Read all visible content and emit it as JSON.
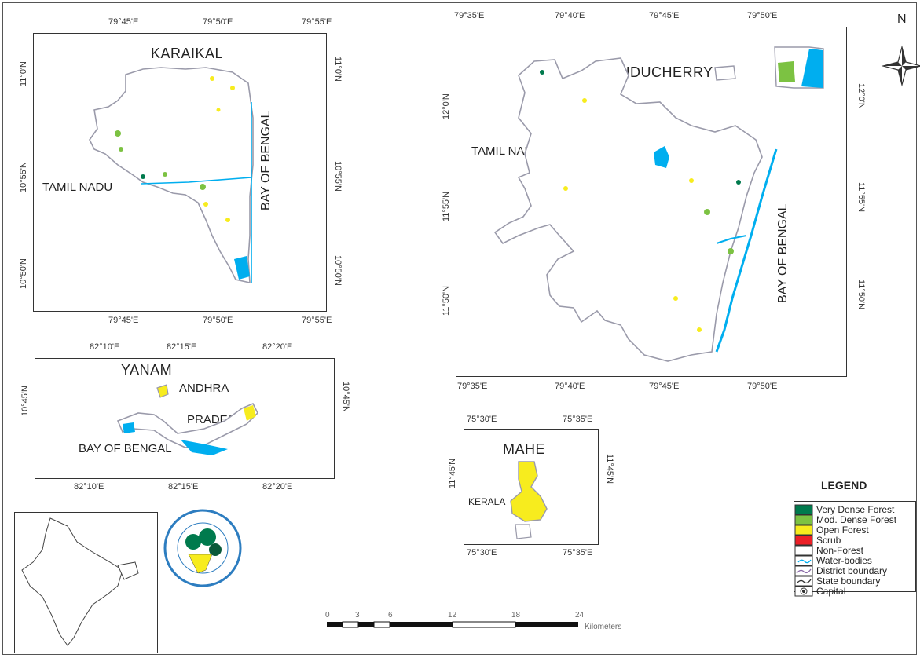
{
  "karaikal": {
    "title": "KARAIKAL",
    "top_ticks": [
      "79°45'E",
      "79°50'E",
      "79°55'E"
    ],
    "bottom_ticks": [
      "79°45'E",
      "79°50'E",
      "79°55'E"
    ],
    "left_ticks": [
      "11°0'N",
      "10°55'N",
      "10°50'N"
    ],
    "right_ticks": [
      "11°0'N",
      "10°55'N",
      "10°50'N"
    ],
    "land_label": "TAMIL NADU",
    "sea_label": "BAY OF BENGAL"
  },
  "puducherry": {
    "title": "PUDUCHERRY",
    "top_ticks": [
      "79°35'E",
      "79°40'E",
      "79°45'E",
      "79°50'E"
    ],
    "bottom_ticks": [
      "79°35'E",
      "79°40'E",
      "79°45'E",
      "79°50'E"
    ],
    "left_ticks": [
      "12°0'N",
      "11°55'N",
      "11°50'N"
    ],
    "right_ticks": [
      "12°0'N",
      "11°55'N",
      "11°50'N"
    ],
    "land_label": "TAMIL NADU",
    "sea_label": "BAY OF BENGAL"
  },
  "yanam": {
    "title": "YANAM",
    "top_ticks": [
      "82°10'E",
      "82°15'E",
      "82°20'E"
    ],
    "bottom_ticks": [
      "82°10'E",
      "82°15'E",
      "82°20'E"
    ],
    "left_ticks": [
      "10°45'N"
    ],
    "right_ticks": [
      "10°45'N"
    ],
    "land_label_line1": "ANDHRA",
    "land_label_line2": "PRADESH",
    "sea_label": "BAY OF BENGAL"
  },
  "mahe": {
    "title": "MAHE",
    "top_ticks": [
      "75°30'E",
      "75°35'E"
    ],
    "bottom_ticks": [
      "75°30'E",
      "75°35'E"
    ],
    "left_ticks": [
      "11°45'N"
    ],
    "right_ticks": [
      "11°45'N"
    ],
    "land_label": "KERALA"
  },
  "north_arrow": {
    "label": "N"
  },
  "legend": {
    "title": "LEGEND",
    "items": [
      {
        "label": "Very Dense Forest",
        "color": "#007a4d",
        "kind": "fill"
      },
      {
        "label": "Mod. Dense Forest",
        "color": "#7cc242",
        "kind": "fill"
      },
      {
        "label": "Open Forest",
        "color": "#f7ec1e",
        "kind": "fill"
      },
      {
        "label": "Scrub",
        "color": "#ec2027",
        "kind": "fill"
      },
      {
        "label": "Non-Forest",
        "color": "#ffffff",
        "kind": "fill"
      },
      {
        "label": "Water-bodies",
        "color": "#00aeef",
        "kind": "water"
      },
      {
        "label": "District boundary",
        "color": "#8a6aa8",
        "kind": "district"
      },
      {
        "label": "State boundary",
        "color": "#333333",
        "kind": "state"
      },
      {
        "label": "Capital",
        "color": "#333333",
        "kind": "capital"
      }
    ]
  },
  "scale_bar": {
    "ticks": [
      "0",
      "3",
      "6",
      "12",
      "18",
      "24"
    ],
    "unit": "Kilometers"
  },
  "colors": {
    "water": "#00aeef",
    "open_forest": "#f7ec1e",
    "mod_dense": "#7cc242",
    "very_dense": "#007a4d",
    "boundary": "#9a9aaa"
  }
}
